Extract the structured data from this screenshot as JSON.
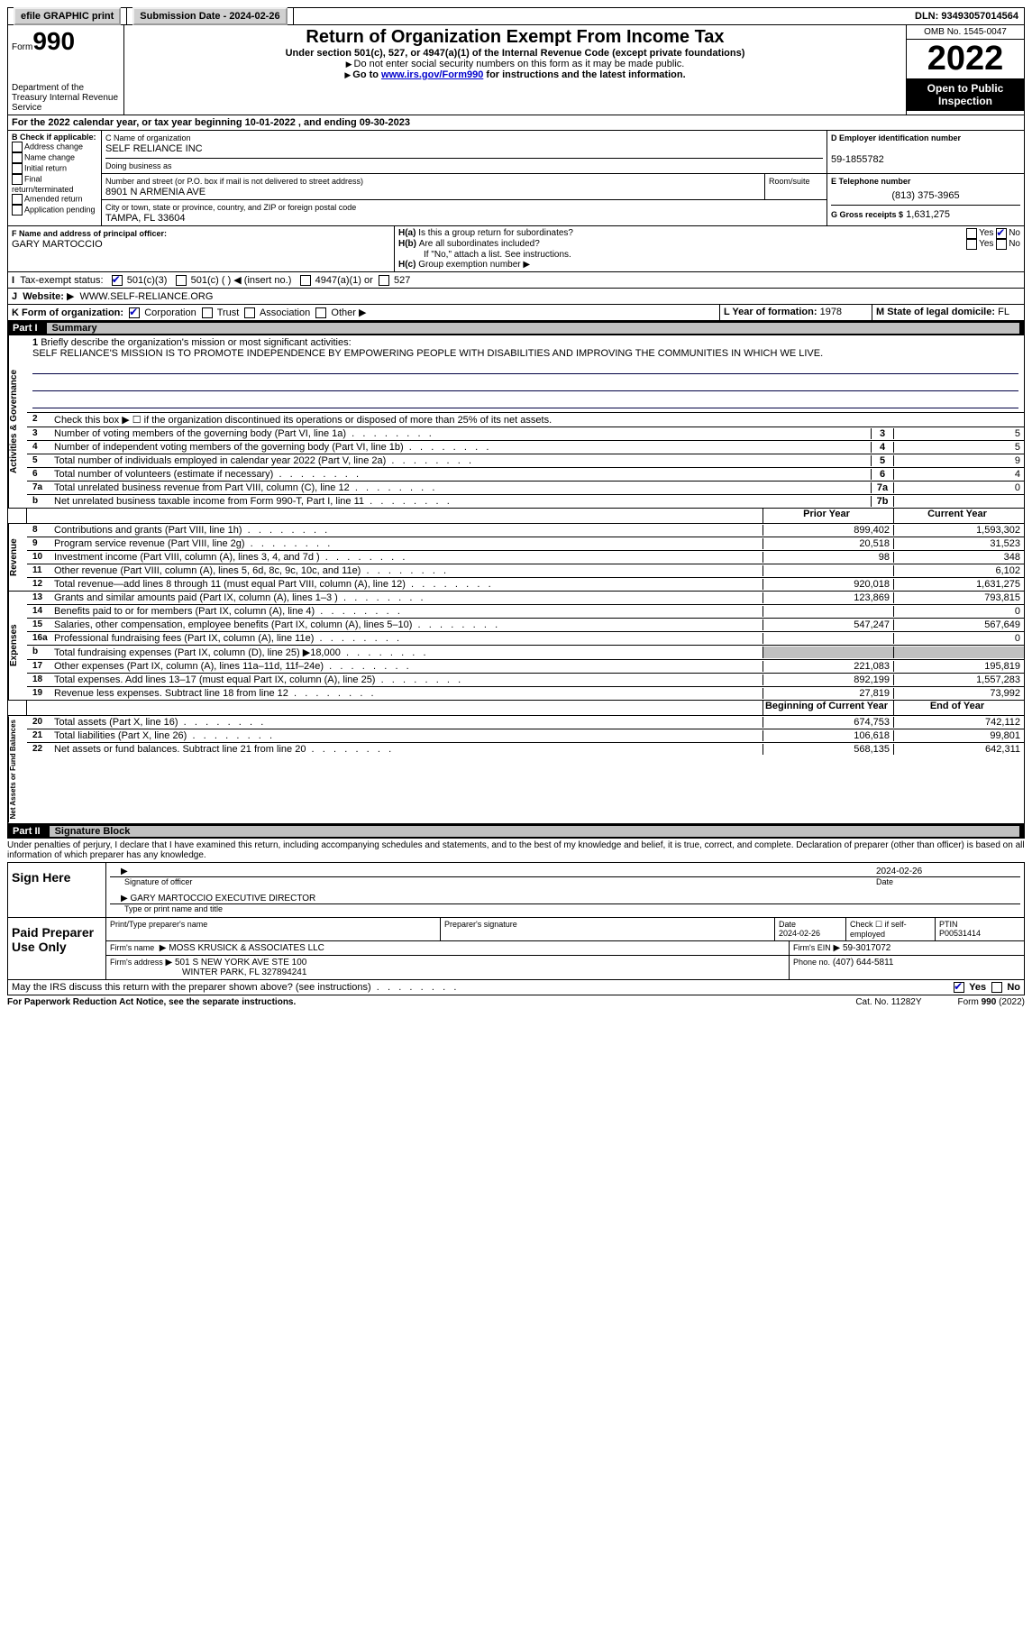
{
  "topbar": {
    "efile": "efile GRAPHIC print",
    "submission_label": "Submission Date - 2024-02-26",
    "dln": "DLN: 93493057014564"
  },
  "header": {
    "form_label": "Form",
    "form_number": "990",
    "dept": "Department of the Treasury Internal Revenue Service",
    "title": "Return of Organization Exempt From Income Tax",
    "subtitle": "Under section 501(c), 527, or 4947(a)(1) of the Internal Revenue Code (except private foundations)",
    "note1": "Do not enter social security numbers on this form as it may be made public.",
    "note2_pre": "Go to ",
    "note2_link": "www.irs.gov/Form990",
    "note2_post": " for instructions and the latest information.",
    "omb": "OMB No. 1545-0047",
    "year": "2022",
    "inspection": "Open to Public Inspection"
  },
  "periodA": "For the 2022 calendar year, or tax year beginning 10-01-2022   , and ending 09-30-2023",
  "boxB": {
    "hdr": "B Check if applicable:",
    "opts": [
      "Address change",
      "Name change",
      "Initial return",
      "Final return/terminated",
      "Amended return",
      "Application pending"
    ]
  },
  "boxC": {
    "name_label": "C Name of organization",
    "name": "SELF RELIANCE INC",
    "dba_label": "Doing business as",
    "street_label": "Number and street (or P.O. box if mail is not delivered to street address)",
    "room_label": "Room/suite",
    "street": "8901 N ARMENIA AVE",
    "city_label": "City or town, state or province, country, and ZIP or foreign postal code",
    "city": "TAMPA, FL  33604"
  },
  "boxD": {
    "label": "D Employer identification number",
    "ein": "59-1855782"
  },
  "boxE": {
    "label": "E Telephone number",
    "phone": "(813) 375-3965"
  },
  "boxG": {
    "label": "G Gross receipts $",
    "amount": "1,631,275"
  },
  "boxF": {
    "label": "F Name and address of principal officer:",
    "name": "GARY MARTOCCIO"
  },
  "boxH": {
    "a_q": "Is this a group return for subordinates?",
    "b_q": "Are all subordinates included?",
    "yes": "Yes",
    "no": "No",
    "b_note": "If \"No,\" attach a list. See instructions.",
    "c_label": "Group exemption number"
  },
  "boxI": {
    "label": "Tax-exempt status:",
    "o1": "501(c)(3)",
    "o2": "501(c) (  ) ◀ (insert no.)",
    "o3": "4947(a)(1) or",
    "o4": "527"
  },
  "boxJ": {
    "label": "Website:",
    "url": "WWW.SELF-RELIANCE.ORG"
  },
  "boxK": {
    "label": "K Form of organization:",
    "corp": "Corporation",
    "trust": "Trust",
    "assoc": "Association",
    "other": "Other"
  },
  "boxL": {
    "label": "L Year of formation:",
    "val": "1978"
  },
  "boxM": {
    "label": "M State of legal domicile:",
    "val": "FL"
  },
  "part1": {
    "num": "Part I",
    "title": "Summary",
    "l1_label": "Briefly describe the organization's mission or most significant activities:",
    "l1_text": "SELF RELIANCE'S MISSION IS TO PROMOTE INDEPENDENCE BY EMPOWERING PEOPLE WITH DISABILITIES AND IMPROVING THE COMMUNITIES IN WHICH WE LIVE.",
    "l2": "Check this box ▶ ☐ if the organization discontinued its operations or disposed of more than 25% of its net assets.",
    "lines_top": [
      {
        "n": "3",
        "t": "Number of voting members of the governing body (Part VI, line 1a)",
        "box": "3",
        "v": "5"
      },
      {
        "n": "4",
        "t": "Number of independent voting members of the governing body (Part VI, line 1b)",
        "box": "4",
        "v": "5"
      },
      {
        "n": "5",
        "t": "Total number of individuals employed in calendar year 2022 (Part V, line 2a)",
        "box": "5",
        "v": "9"
      },
      {
        "n": "6",
        "t": "Total number of volunteers (estimate if necessary)",
        "box": "6",
        "v": "4"
      },
      {
        "n": "7a",
        "t": "Total unrelated business revenue from Part VIII, column (C), line 12",
        "box": "7a",
        "v": "0"
      },
      {
        "n": "b",
        "t": "Net unrelated business taxable income from Form 990-T, Part I, line 11",
        "box": "7b",
        "v": ""
      }
    ],
    "col_prior": "Prior Year",
    "col_curr": "Current Year",
    "revenue": [
      {
        "n": "8",
        "t": "Contributions and grants (Part VIII, line 1h)",
        "p": "899,402",
        "c": "1,593,302"
      },
      {
        "n": "9",
        "t": "Program service revenue (Part VIII, line 2g)",
        "p": "20,518",
        "c": "31,523"
      },
      {
        "n": "10",
        "t": "Investment income (Part VIII, column (A), lines 3, 4, and 7d )",
        "p": "98",
        "c": "348"
      },
      {
        "n": "11",
        "t": "Other revenue (Part VIII, column (A), lines 5, 6d, 8c, 9c, 10c, and 11e)",
        "p": "",
        "c": "6,102"
      },
      {
        "n": "12",
        "t": "Total revenue—add lines 8 through 11 (must equal Part VIII, column (A), line 12)",
        "p": "920,018",
        "c": "1,631,275"
      }
    ],
    "expenses": [
      {
        "n": "13",
        "t": "Grants and similar amounts paid (Part IX, column (A), lines 1–3 )",
        "p": "123,869",
        "c": "793,815"
      },
      {
        "n": "14",
        "t": "Benefits paid to or for members (Part IX, column (A), line 4)",
        "p": "",
        "c": "0"
      },
      {
        "n": "15",
        "t": "Salaries, other compensation, employee benefits (Part IX, column (A), lines 5–10)",
        "p": "547,247",
        "c": "567,649"
      },
      {
        "n": "16a",
        "t": "Professional fundraising fees (Part IX, column (A), line 11e)",
        "p": "",
        "c": "0"
      },
      {
        "n": "b",
        "t": "Total fundraising expenses (Part IX, column (D), line 25) ▶18,000",
        "p": "shade",
        "c": "shade"
      },
      {
        "n": "17",
        "t": "Other expenses (Part IX, column (A), lines 11a–11d, 11f–24e)",
        "p": "221,083",
        "c": "195,819"
      },
      {
        "n": "18",
        "t": "Total expenses. Add lines 13–17 (must equal Part IX, column (A), line 25)",
        "p": "892,199",
        "c": "1,557,283"
      },
      {
        "n": "19",
        "t": "Revenue less expenses. Subtract line 18 from line 12",
        "p": "27,819",
        "c": "73,992"
      }
    ],
    "col_begin": "Beginning of Current Year",
    "col_end": "End of Year",
    "netassets": [
      {
        "n": "20",
        "t": "Total assets (Part X, line 16)",
        "p": "674,753",
        "c": "742,112"
      },
      {
        "n": "21",
        "t": "Total liabilities (Part X, line 26)",
        "p": "106,618",
        "c": "99,801"
      },
      {
        "n": "22",
        "t": "Net assets or fund balances. Subtract line 21 from line 20",
        "p": "568,135",
        "c": "642,311"
      }
    ],
    "vlabels": {
      "gov": "Activities & Governance",
      "rev": "Revenue",
      "exp": "Expenses",
      "net": "Net Assets or Fund Balances"
    }
  },
  "part2": {
    "num": "Part II",
    "title": "Signature Block",
    "decl": "Under penalties of perjury, I declare that I have examined this return, including accompanying schedules and statements, and to the best of my knowledge and belief, it is true, correct, and complete. Declaration of preparer (other than officer) is based on all information of which preparer has any knowledge.",
    "sign_here": "Sign Here",
    "sig_officer": "Signature of officer",
    "sig_date": "2024-02-26",
    "sig_name": "GARY MARTOCCIO  EXECUTIVE DIRECTOR",
    "sig_name_label": "Type or print name and title",
    "paid": "Paid Preparer Use Only",
    "prep_name_label": "Print/Type preparer's name",
    "prep_sig_label": "Preparer's signature",
    "prep_date_label": "Date",
    "prep_date": "2024-02-26",
    "prep_check": "Check ☐ if self-employed",
    "ptin_label": "PTIN",
    "ptin": "P00531414",
    "firm_name_label": "Firm's name",
    "firm_name": "MOSS KRUSICK & ASSOCIATES LLC",
    "firm_ein_label": "Firm's EIN",
    "firm_ein": "59-3017072",
    "firm_addr_label": "Firm's address",
    "firm_addr1": "501 S NEW YORK AVE STE 100",
    "firm_addr2": "WINTER PARK, FL  327894241",
    "firm_phone_label": "Phone no.",
    "firm_phone": "(407) 644-5811",
    "discuss": "May the IRS discuss this return with the preparer shown above? (see instructions)",
    "yes": "Yes",
    "no": "No"
  },
  "footer": {
    "left": "For Paperwork Reduction Act Notice, see the separate instructions.",
    "mid": "Cat. No. 11282Y",
    "right": "Form 990 (2022)"
  }
}
